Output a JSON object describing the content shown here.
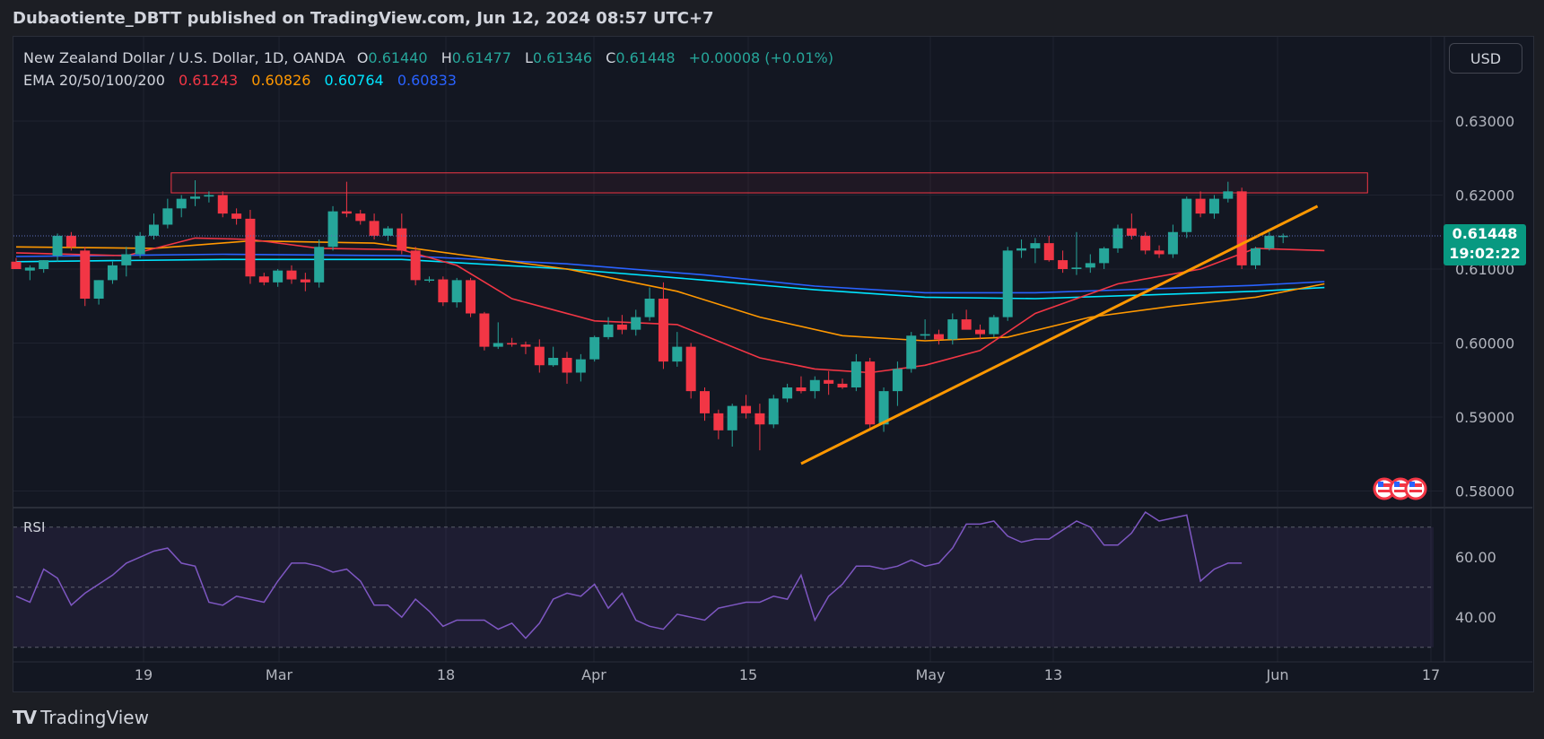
{
  "header": {
    "published": "Dubaotiente_DBTT published on TradingView.com, Jun 12, 2024 08:57 UTC+7"
  },
  "legend": {
    "symbol": "New Zealand Dollar / U.S. Dollar, 1D, OANDA",
    "open_key": "O",
    "open": "0.61440",
    "high_key": "H",
    "high": "0.61477",
    "low_key": "L",
    "low": "0.61346",
    "close_key": "C",
    "close": "0.61448",
    "change": "+0.00008 (+0.01%)",
    "ema_name": "EMA 20/50/100/200",
    "ema_values": [
      "0.61243",
      "0.60826",
      "0.60764",
      "0.60833"
    ],
    "ema_colors": [
      "#f23645",
      "#ff9800",
      "#00e5ff",
      "#2962ff"
    ]
  },
  "controls": {
    "currency": "USD"
  },
  "price_tag": {
    "price": "0.61448",
    "countdown": "19:02:22"
  },
  "footer": {
    "brand": "TradingView",
    "brand_icon": "tradingview-logo-icon"
  },
  "chart_data": {
    "type": "candlestick",
    "price_axis": {
      "ticks": [
        0.58,
        0.59,
        0.6,
        0.61,
        0.62,
        0.63
      ],
      "labels": [
        "0.58000",
        "0.59000",
        "0.60000",
        "0.61000",
        "0.62000",
        "0.63000"
      ]
    },
    "time_axis": {
      "labels": [
        "19",
        "Mar",
        "18",
        "Apr",
        "15",
        "May",
        "13",
        "Jun",
        "17"
      ]
    },
    "colors": {
      "up": "#26a69a",
      "down": "#f23645",
      "trendline": "#ff9800",
      "resistance": "#f23645",
      "rsi": "#7e57c2"
    },
    "candles": [
      [
        0.611,
        0.6115,
        0.61,
        0.61
      ],
      [
        0.6098,
        0.6105,
        0.6085,
        0.6102
      ],
      [
        0.61,
        0.6112,
        0.6095,
        0.6112
      ],
      [
        0.6118,
        0.6148,
        0.611,
        0.6145
      ],
      [
        0.6145,
        0.615,
        0.6125,
        0.613
      ],
      [
        0.6125,
        0.613,
        0.605,
        0.606
      ],
      [
        0.606,
        0.6085,
        0.6052,
        0.6085
      ],
      [
        0.6085,
        0.611,
        0.608,
        0.6105
      ],
      [
        0.6105,
        0.613,
        0.609,
        0.612
      ],
      [
        0.612,
        0.615,
        0.6115,
        0.6145
      ],
      [
        0.6145,
        0.6175,
        0.614,
        0.616
      ],
      [
        0.616,
        0.6195,
        0.6155,
        0.6182
      ],
      [
        0.6182,
        0.62,
        0.617,
        0.6195
      ],
      [
        0.6195,
        0.622,
        0.6185,
        0.6198
      ],
      [
        0.6198,
        0.6205,
        0.619,
        0.62
      ],
      [
        0.62,
        0.6205,
        0.617,
        0.6175
      ],
      [
        0.6175,
        0.6182,
        0.616,
        0.6168
      ],
      [
        0.6168,
        0.618,
        0.608,
        0.609
      ],
      [
        0.609,
        0.6095,
        0.6078,
        0.6082
      ],
      [
        0.6082,
        0.61,
        0.6076,
        0.6098
      ],
      [
        0.6098,
        0.6105,
        0.608,
        0.6086
      ],
      [
        0.6086,
        0.6095,
        0.607,
        0.6082
      ],
      [
        0.6082,
        0.614,
        0.6075,
        0.613
      ],
      [
        0.613,
        0.6185,
        0.6125,
        0.6178
      ],
      [
        0.6178,
        0.6218,
        0.617,
        0.6175
      ],
      [
        0.6175,
        0.618,
        0.616,
        0.6165
      ],
      [
        0.6165,
        0.6175,
        0.614,
        0.6145
      ],
      [
        0.6145,
        0.6158,
        0.6138,
        0.6155
      ],
      [
        0.6155,
        0.6175,
        0.612,
        0.6125
      ],
      [
        0.6125,
        0.613,
        0.6078,
        0.6085
      ],
      [
        0.6085,
        0.609,
        0.6082,
        0.6086
      ],
      [
        0.6086,
        0.609,
        0.605,
        0.6055
      ],
      [
        0.6055,
        0.6088,
        0.6048,
        0.6085
      ],
      [
        0.6085,
        0.6088,
        0.6035,
        0.604
      ],
      [
        0.604,
        0.6042,
        0.599,
        0.5995
      ],
      [
        0.5995,
        0.6028,
        0.5992,
        0.6
      ],
      [
        0.6,
        0.6007,
        0.5995,
        0.5998
      ],
      [
        0.5998,
        0.6002,
        0.5985,
        0.5995
      ],
      [
        0.5995,
        0.6005,
        0.596,
        0.597
      ],
      [
        0.597,
        0.5995,
        0.5968,
        0.598
      ],
      [
        0.598,
        0.5988,
        0.5945,
        0.596
      ],
      [
        0.596,
        0.5985,
        0.5948,
        0.5978
      ],
      [
        0.5978,
        0.601,
        0.5975,
        0.6008
      ],
      [
        0.6008,
        0.6035,
        0.6005,
        0.6025
      ],
      [
        0.6025,
        0.6038,
        0.6012,
        0.6018
      ],
      [
        0.6018,
        0.6045,
        0.601,
        0.6035
      ],
      [
        0.6035,
        0.6075,
        0.603,
        0.606
      ],
      [
        0.606,
        0.6082,
        0.5965,
        0.5975
      ],
      [
        0.5975,
        0.6015,
        0.5968,
        0.5995
      ],
      [
        0.5995,
        0.6,
        0.5925,
        0.5935
      ],
      [
        0.5935,
        0.594,
        0.5895,
        0.5905
      ],
      [
        0.5905,
        0.591,
        0.587,
        0.5882
      ],
      [
        0.5882,
        0.5918,
        0.586,
        0.5915
      ],
      [
        0.5915,
        0.593,
        0.5898,
        0.5905
      ],
      [
        0.5905,
        0.5918,
        0.5855,
        0.589
      ],
      [
        0.589,
        0.593,
        0.5885,
        0.5925
      ],
      [
        0.5925,
        0.5945,
        0.592,
        0.594
      ],
      [
        0.594,
        0.5955,
        0.5932,
        0.5935
      ],
      [
        0.5935,
        0.5955,
        0.5925,
        0.595
      ],
      [
        0.595,
        0.5962,
        0.593,
        0.5945
      ],
      [
        0.5945,
        0.5952,
        0.5938,
        0.594
      ],
      [
        0.594,
        0.5985,
        0.5935,
        0.5975
      ],
      [
        0.5975,
        0.598,
        0.5885,
        0.589
      ],
      [
        0.589,
        0.594,
        0.588,
        0.5935
      ],
      [
        0.5935,
        0.5975,
        0.5915,
        0.5965
      ],
      [
        0.5965,
        0.6015,
        0.596,
        0.601
      ],
      [
        0.601,
        0.6032,
        0.6005,
        0.6012
      ],
      [
        0.6012,
        0.6018,
        0.5998,
        0.6005
      ],
      [
        0.6005,
        0.604,
        0.5998,
        0.6032
      ],
      [
        0.6032,
        0.6045,
        0.602,
        0.6018
      ],
      [
        0.6018,
        0.6025,
        0.6005,
        0.6012
      ],
      [
        0.6012,
        0.6038,
        0.6008,
        0.6035
      ],
      [
        0.6035,
        0.613,
        0.603,
        0.6125
      ],
      [
        0.6125,
        0.614,
        0.6115,
        0.6128
      ],
      [
        0.6128,
        0.6142,
        0.6108,
        0.6135
      ],
      [
        0.6135,
        0.6145,
        0.611,
        0.6112
      ],
      [
        0.6112,
        0.6125,
        0.6095,
        0.61
      ],
      [
        0.61,
        0.615,
        0.6092,
        0.6102
      ],
      [
        0.6102,
        0.612,
        0.6095,
        0.6108
      ],
      [
        0.6108,
        0.613,
        0.61,
        0.6128
      ],
      [
        0.6128,
        0.616,
        0.6122,
        0.6155
      ],
      [
        0.6155,
        0.6175,
        0.614,
        0.6145
      ],
      [
        0.6145,
        0.615,
        0.612,
        0.6125
      ],
      [
        0.6125,
        0.6132,
        0.6115,
        0.612
      ],
      [
        0.612,
        0.616,
        0.6115,
        0.615
      ],
      [
        0.615,
        0.6198,
        0.6142,
        0.6195
      ],
      [
        0.6195,
        0.6205,
        0.617,
        0.6175
      ],
      [
        0.6175,
        0.62,
        0.6168,
        0.6195
      ],
      [
        0.6195,
        0.6218,
        0.619,
        0.6205
      ],
      [
        0.6205,
        0.621,
        0.61,
        0.6105
      ],
      [
        0.6105,
        0.613,
        0.61,
        0.6128
      ],
      [
        0.6128,
        0.615,
        0.6125,
        0.6145
      ],
      [
        0.6144,
        0.6148,
        0.6135,
        0.6145
      ]
    ],
    "ema20": [
      [
        0,
        0.6122
      ],
      [
        8,
        0.6118
      ],
      [
        13,
        0.6142
      ],
      [
        17,
        0.614
      ],
      [
        22,
        0.6128
      ],
      [
        28,
        0.6126
      ],
      [
        32,
        0.6105
      ],
      [
        36,
        0.606
      ],
      [
        42,
        0.603
      ],
      [
        48,
        0.6025
      ],
      [
        54,
        0.598
      ],
      [
        58,
        0.5965
      ],
      [
        62,
        0.596
      ],
      [
        66,
        0.597
      ],
      [
        70,
        0.599
      ],
      [
        74,
        0.604
      ],
      [
        80,
        0.608
      ],
      [
        86,
        0.61
      ],
      [
        90,
        0.6128
      ],
      [
        95,
        0.6125
      ]
    ],
    "ema50": [
      [
        0,
        0.613
      ],
      [
        10,
        0.6128
      ],
      [
        17,
        0.6138
      ],
      [
        26,
        0.6135
      ],
      [
        32,
        0.612
      ],
      [
        40,
        0.61
      ],
      [
        48,
        0.607
      ],
      [
        54,
        0.6035
      ],
      [
        60,
        0.601
      ],
      [
        66,
        0.6003
      ],
      [
        72,
        0.6008
      ],
      [
        78,
        0.6035
      ],
      [
        84,
        0.605
      ],
      [
        90,
        0.6062
      ],
      [
        95,
        0.608
      ]
    ],
    "ema100": [
      [
        0,
        0.611
      ],
      [
        15,
        0.6113
      ],
      [
        28,
        0.6113
      ],
      [
        40,
        0.61
      ],
      [
        50,
        0.6085
      ],
      [
        58,
        0.6072
      ],
      [
        66,
        0.6062
      ],
      [
        74,
        0.606
      ],
      [
        82,
        0.6065
      ],
      [
        90,
        0.607
      ],
      [
        95,
        0.6075
      ]
    ],
    "ema200": [
      [
        0,
        0.6117
      ],
      [
        15,
        0.612
      ],
      [
        28,
        0.6118
      ],
      [
        40,
        0.6107
      ],
      [
        50,
        0.6092
      ],
      [
        58,
        0.6077
      ],
      [
        66,
        0.6068
      ],
      [
        74,
        0.6068
      ],
      [
        82,
        0.6073
      ],
      [
        90,
        0.6078
      ],
      [
        95,
        0.6083
      ]
    ],
    "trendline": [
      [
        57,
        0.5837
      ],
      [
        94.5,
        0.6185
      ]
    ],
    "resistance_zone": {
      "start_index": 11,
      "end_index": 98,
      "low": 0.6203,
      "high": 0.623
    },
    "current_price": 0.61448,
    "rsi": {
      "label": "RSI",
      "ticks": [
        "60.00",
        "40.00"
      ],
      "bands": [
        70,
        50,
        30
      ],
      "ylim": [
        28,
        72
      ],
      "values": [
        47,
        45,
        56,
        53,
        44,
        48,
        51,
        54,
        58,
        60,
        62,
        63,
        58,
        57,
        45,
        44,
        47,
        46,
        45,
        52,
        58,
        58,
        57,
        55,
        56,
        52,
        44,
        44,
        40,
        46,
        42,
        37,
        39,
        39,
        39,
        36,
        38,
        33,
        38,
        46,
        48,
        47,
        51,
        43,
        48,
        39,
        37,
        36,
        41,
        40,
        39,
        43,
        44,
        45,
        45,
        47,
        46,
        54,
        39,
        47,
        51,
        57,
        57,
        56,
        57,
        59,
        57,
        58,
        63,
        71,
        71,
        72,
        67,
        65,
        66,
        66,
        69,
        72,
        70,
        64,
        64,
        68,
        75,
        72,
        73,
        74,
        52,
        56,
        58,
        58
      ]
    }
  }
}
